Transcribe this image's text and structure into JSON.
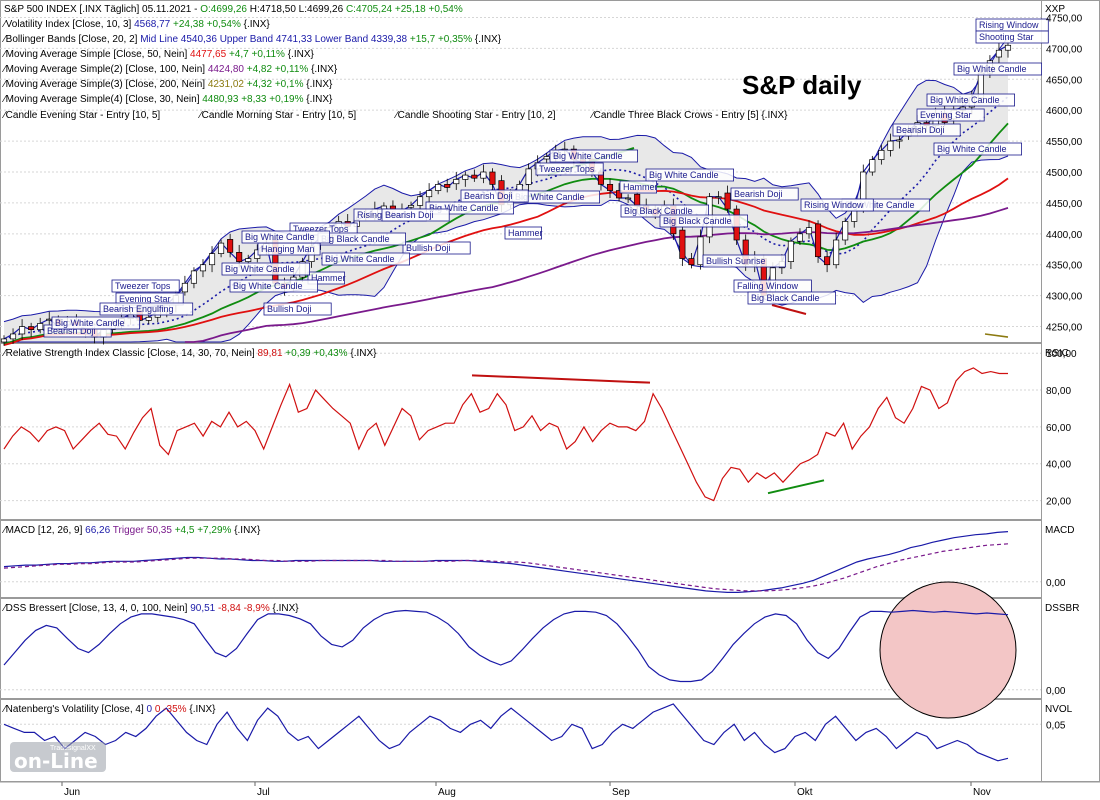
{
  "header": {
    "symbol": "S&P 500 INDEX [.INX Täglich] 05.11.2021 -",
    "ohlc_o": "O:4699,26",
    "ohlc_h": "H:4718,50",
    "ohlc_l": "L:4699,26",
    "ohlc_c": "C:4705,24 +25,18 +0,54%"
  },
  "legend_lines": [
    {
      "label": "Volatility Index [Close, 10, 3]",
      "value": "4568,77",
      "change": "+24,38 +0,54%",
      "suffix": "{.INX}",
      "color": "#1a1aa8"
    },
    {
      "label": "Bollinger Bands [Close, 20, 2]",
      "value": "Mid Line 4540,36 Upper Band 4741,33 Lower Band 4339,38",
      "change": "+15,7 +0,35%",
      "suffix": "{.INX}",
      "color": "#1a1aa8"
    },
    {
      "label": "Moving Average Simple [Close, 50, Nein]",
      "value": "4477,65",
      "change": "+4,7 +0,11%",
      "suffix": "{.INX}",
      "color": "#e01010"
    },
    {
      "label": "Moving Average Simple(2) [Close, 100, Nein]",
      "value": "4424,80",
      "change": "+4,82 +0,11%",
      "suffix": "{.INX}",
      "color": "#7a1a8c"
    },
    {
      "label": "Moving Average Simple(3) [Close, 200, Nein]",
      "value": "4231,02",
      "change": "+4,32 +0,1%",
      "suffix": "{.INX}",
      "color": "#8c7a10"
    },
    {
      "label": "Moving Average Simple(4) [Close, 30, Nein]",
      "value": "4480,93",
      "change": "+8,33 +0,19%",
      "suffix": "{.INX}",
      "color": "#108c10"
    }
  ],
  "candle_scans": [
    "Candle Evening Star - Entry [10, 5]",
    "Candle Morning Star - Entry [10, 5]",
    "Candle Shooting Star - Entry [10, 2]",
    "Candle Three Black Crows - Entry [5] {.INX}"
  ],
  "chart_title": "S&P daily",
  "months": [
    "Jun",
    "Jul",
    "Aug",
    "Sep",
    "Okt",
    "Nov"
  ],
  "panes": {
    "price": {
      "axis_label": "XXP",
      "ticks": [
        "4750,00",
        "4700,00",
        "4650,00",
        "4600,00",
        "4550,00",
        "4500,00",
        "4450,00",
        "4400,00",
        "4350,00",
        "4300,00",
        "4250,00"
      ]
    },
    "rsi": {
      "axis_label": "RSIC",
      "legend": "Relative Strength Index Classic [Close, 14, 30, 70, Nein]",
      "value": "89,81",
      "change": "+0,39 +0,43%",
      "suffix": "{.INX}",
      "ticks": [
        "100,00",
        "80,00",
        "60,00",
        "40,00",
        "20,00"
      ]
    },
    "macd": {
      "axis_label": "MACD",
      "legend": "MACD [12, 26, 9]",
      "value": "66,26",
      "trigger": "Trigger 50,35",
      "change": "+4,5 +7,29%",
      "suffix": "{.INX}",
      "ticks": [
        "0,00"
      ]
    },
    "dss": {
      "axis_label": "DSSBR",
      "legend": "DSS Bressert [Close, 13, 4, 0, 100, Nein]",
      "value": "90,51",
      "change": "-8,84 -8,9%",
      "suffix": "{.INX}",
      "ticks": [
        "0,00"
      ]
    },
    "nvol": {
      "axis_label": "NVOL",
      "legend": "Natenberg's Volatility [Close, 4]",
      "value": "0",
      "change": "0 -35%",
      "suffix": "{.INX}",
      "ticks": [
        "0,05"
      ]
    }
  },
  "pattern_labels": [
    "Rising Window",
    "Shooting Star",
    "Big White Candle",
    "Big White Candle",
    "Evening Star",
    "Bearish Doji",
    "Big White Candle",
    "Big White Candle",
    "Bearish Doji",
    "Rising Window",
    "Big White Candle",
    "Big Black Candle",
    "Falling Window",
    "Bullish Sunrise",
    "Big Black Candle",
    "Big Black Candle",
    "Hammer",
    "Big White Candle",
    "Tweezer Tops",
    "Big White Candle",
    "Bearish Doji",
    "Hammer",
    "Big White Candle",
    "Rising Window",
    "Bearish Doji",
    "Bullish Doji",
    "Tweezer Tops",
    "Big Black Candle",
    "Hanging Man",
    "Big White Candle",
    "Hammer",
    "Big White Candle",
    "Bullish Doji",
    "Tweezer Tops",
    "Evening Star",
    "Bearish Engulfing",
    "Big White Candle",
    "Bearish Doji",
    "Big White Candle",
    "Big White Candle"
  ],
  "watermark": {
    "small": "TradesignalXX",
    "big": "on-Line"
  },
  "colors": {
    "bull": "#ffffff",
    "bear": "#e01010",
    "bollinger": "#1a1aa8",
    "ma50": "#e01010",
    "ma100": "#7a1a8c",
    "ma200": "#8c7a10",
    "ma30": "#108c10",
    "rsi": "#d01010",
    "macd": "#1a1aa8",
    "trigger": "#7a1a8c",
    "dss": "#1a1aa8",
    "nvol": "#1a1aa8",
    "bb_fill": "#e8e8e8",
    "dss_highlight": "#f3c6c6"
  },
  "chart_data": [
    {
      "type": "candlestick",
      "title": "S&P daily",
      "ylim": [
        4225,
        4775
      ],
      "x_labels": [
        "Jun",
        "Jul",
        "Aug",
        "Sep",
        "Okt",
        "Nov"
      ],
      "close": [
        4230,
        4238,
        4250,
        4245,
        4255,
        4262,
        4250,
        4258,
        4248,
        4240,
        4233,
        4245,
        4255,
        4263,
        4270,
        4260,
        4265,
        4275,
        4285,
        4300,
        4320,
        4340,
        4350,
        4368,
        4385,
        4370,
        4355,
        4360,
        4374,
        4384,
        4320,
        4312,
        4330,
        4355,
        4380,
        4395,
        4410,
        4420,
        4412,
        4422,
        4430,
        4440,
        4445,
        4432,
        4437,
        4446,
        4460,
        4470,
        4480,
        4475,
        4488,
        4495,
        4490,
        4500,
        4480,
        4447,
        4460,
        4480,
        4505,
        4515,
        4525,
        4535,
        4537,
        4520,
        4515,
        4500,
        4480,
        4470,
        4458,
        4458,
        4445,
        4440,
        4430,
        4445,
        4400,
        4360,
        4350,
        4395,
        4460,
        4460,
        4440,
        4390,
        4350,
        4360,
        4300,
        4345,
        4355,
        4388,
        4400,
        4410,
        4363,
        4350,
        4390,
        4420,
        4440,
        4500,
        4520,
        4535,
        4550,
        4552,
        4566,
        4580,
        4575,
        4595,
        4580,
        4600,
        4605,
        4620,
        4660,
        4680,
        4697,
        4705
      ]
    },
    {
      "type": "line",
      "title": "Relative Strength Index Classic",
      "ylim": [
        10,
        105
      ],
      "values": [
        48,
        55,
        60,
        57,
        52,
        58,
        60,
        58,
        48,
        53,
        58,
        62,
        56,
        55,
        48,
        57,
        65,
        70,
        50,
        45,
        58,
        60,
        62,
        55,
        63,
        60,
        68,
        60,
        63,
        58,
        48,
        60,
        72,
        83,
        68,
        70,
        80,
        75,
        70,
        66,
        62,
        48,
        58,
        62,
        50,
        60,
        70,
        66,
        53,
        58,
        60,
        62,
        62,
        72,
        78,
        68,
        70,
        78,
        72,
        58,
        60,
        66,
        58,
        62,
        60,
        48,
        52,
        60,
        52,
        58,
        62,
        60,
        60,
        58,
        63,
        78,
        70,
        60,
        50,
        40,
        30,
        22,
        20,
        32,
        38,
        37,
        30,
        35,
        32,
        35,
        30,
        35,
        40,
        42,
        45,
        57,
        55,
        62,
        48,
        55,
        60,
        70,
        76,
        65,
        62,
        70,
        82,
        80,
        70,
        73,
        85,
        90,
        92,
        89,
        90,
        89,
        89
      ]
    },
    {
      "type": "line",
      "title": "MACD",
      "ylim": [
        -20,
        80
      ],
      "series": [
        {
          "name": "MACD",
          "values": [
            20,
            21,
            22,
            22,
            23,
            24,
            24,
            25,
            25,
            26,
            27,
            27,
            27,
            28,
            29,
            30,
            31,
            32,
            32,
            31,
            30,
            30,
            29,
            28,
            28,
            27,
            27,
            28,
            28,
            28,
            28,
            28,
            28,
            28,
            28,
            27,
            27,
            27,
            27,
            27,
            28,
            28,
            28,
            28,
            27,
            26,
            25,
            24,
            22,
            20,
            18,
            16,
            14,
            12,
            10,
            8,
            6,
            4,
            2,
            0,
            -2,
            -4,
            -6,
            -8,
            -10,
            -12,
            -13,
            -14,
            -14,
            -13,
            -12,
            -10,
            -8,
            -5,
            -2,
            2,
            8,
            14,
            20,
            26,
            30,
            33,
            36,
            40,
            45,
            48,
            52,
            55,
            58,
            60,
            62,
            63,
            65,
            66
          ]
        },
        {
          "name": "Trigger",
          "values": [
            18,
            19,
            20,
            21,
            22,
            23,
            23,
            24,
            24,
            25,
            26,
            26,
            26,
            27,
            28,
            29,
            30,
            31,
            31,
            31,
            31,
            30,
            30,
            29,
            28,
            28,
            27,
            27,
            27,
            28,
            28,
            28,
            28,
            28,
            28,
            28,
            27,
            27,
            27,
            27,
            27,
            27,
            28,
            28,
            28,
            27,
            26,
            26,
            25,
            23,
            21,
            19,
            17,
            15,
            13,
            11,
            9,
            7,
            5,
            3,
            1,
            -1,
            -3,
            -5,
            -7,
            -9,
            -10,
            -11,
            -12,
            -12,
            -12,
            -11,
            -10,
            -8,
            -6,
            -3,
            1,
            5,
            10,
            15,
            20,
            24,
            28,
            31,
            34,
            37,
            40,
            42,
            44,
            46,
            48,
            49,
            50
          ]
        }
      ]
    },
    {
      "type": "line",
      "title": "DSS Bressert",
      "ylim": [
        -10,
        110
      ],
      "values": [
        30,
        45,
        60,
        72,
        78,
        75,
        62,
        50,
        45,
        55,
        68,
        80,
        88,
        92,
        92,
        90,
        88,
        85,
        80,
        62,
        45,
        40,
        50,
        68,
        85,
        92,
        92,
        90,
        86,
        80,
        65,
        55,
        52,
        60,
        75,
        85,
        92,
        95,
        96,
        95,
        94,
        88,
        80,
        68,
        52,
        42,
        35,
        30,
        35,
        48,
        62,
        75,
        85,
        92,
        95,
        95,
        94,
        90,
        80,
        65,
        48,
        28,
        18,
        12,
        10,
        10,
        12,
        22,
        38,
        55,
        68,
        80,
        88,
        92,
        90,
        80,
        60,
        45,
        38,
        50,
        70,
        88,
        95,
        95,
        94,
        95,
        96,
        95,
        94,
        95,
        94,
        93,
        92,
        93,
        92,
        91
      ]
    },
    {
      "type": "line",
      "title": "Natenberg's Volatility",
      "ylim": [
        -0.02,
        0.08
      ],
      "values": [
        0.05,
        0.045,
        0.04,
        0.04,
        0.03,
        0.035,
        0.02,
        0.03,
        0.04,
        0.035,
        0.025,
        0.03,
        0.04,
        0.035,
        0.045,
        0.06,
        0.07,
        0.055,
        0.04,
        0.03,
        0.025,
        0.05,
        0.065,
        0.045,
        0.03,
        0.055,
        0.07,
        0.06,
        0.04,
        0.03,
        0.035,
        0.02,
        0.03,
        0.04,
        0.05,
        0.06,
        0.045,
        0.03,
        0.02,
        0.025,
        0.04,
        0.05,
        0.06,
        0.055,
        0.045,
        0.04,
        0.05,
        0.055,
        0.045,
        0.06,
        0.07,
        0.06,
        0.05,
        0.04,
        0.03,
        0.035,
        0.05,
        0.045,
        0.02,
        0.025,
        0.04,
        0.05,
        0.045,
        0.055,
        0.065,
        0.07,
        0.075,
        0.06,
        0.045,
        0.03,
        0.025,
        0.04,
        0.05,
        0.03,
        0.04,
        0.025,
        0.015,
        0.02,
        0.035,
        0.04,
        0.03,
        0.05,
        0.06,
        0.045,
        0.03,
        0.04,
        0.045,
        0.035,
        0.02,
        0.03,
        0.04,
        0.035,
        0.02,
        0.025,
        0.03,
        0.025,
        0.015,
        0.01,
        0.005,
        0.008
      ]
    }
  ]
}
